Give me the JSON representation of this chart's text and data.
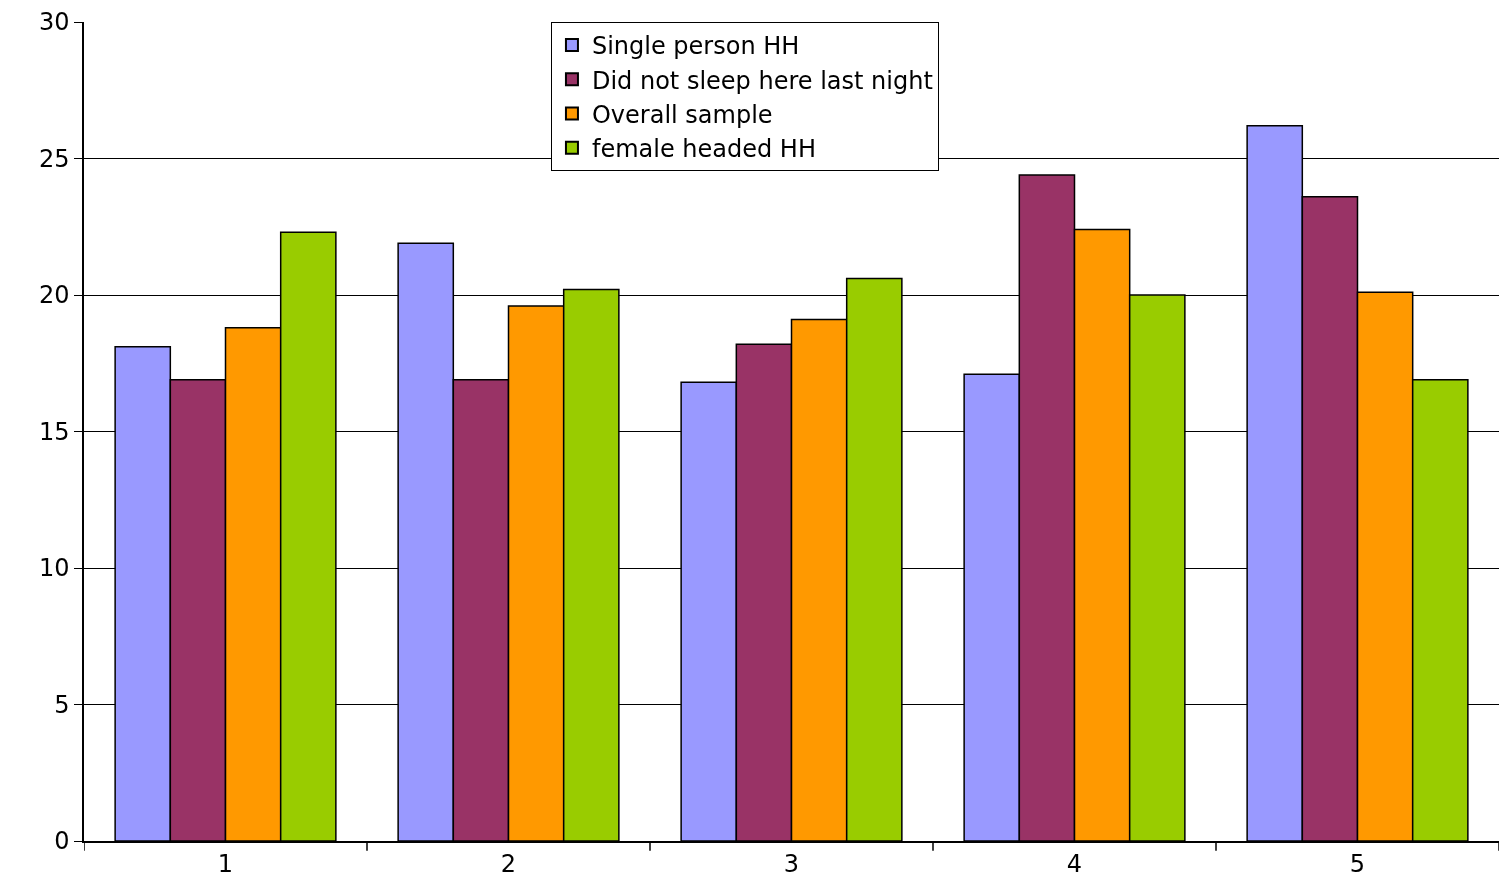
{
  "chart_data": {
    "type": "bar",
    "categories": [
      "1",
      "2",
      "3",
      "4",
      "5"
    ],
    "series": [
      {
        "name": "Single person HH",
        "color": "#9999ff",
        "values": [
          18.1,
          21.9,
          16.8,
          17.1,
          26.2
        ]
      },
      {
        "name": "Did not sleep here last night",
        "color": "#993366",
        "values": [
          16.9,
          16.9,
          18.2,
          24.4,
          23.6
        ]
      },
      {
        "name": "Overall sample",
        "color": "#ff9900",
        "values": [
          18.8,
          19.6,
          19.1,
          22.4,
          20.1
        ]
      },
      {
        "name": "female headed HH",
        "color": "#99cc00",
        "values": [
          22.3,
          20.2,
          20.6,
          20.0,
          16.9
        ]
      }
    ],
    "ylim": [
      0,
      30
    ],
    "yticks": [
      0,
      5,
      10,
      15,
      20,
      25,
      30
    ],
    "grid": "y",
    "legend": "top"
  }
}
